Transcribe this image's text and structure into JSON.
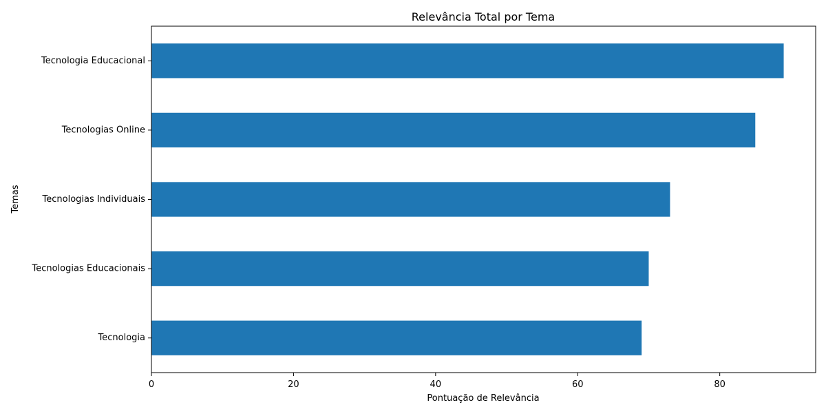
{
  "chart_data": {
    "type": "bar",
    "orientation": "horizontal",
    "title": "Relevância Total por Tema",
    "xlabel": "Pontuação de Relevância",
    "ylabel": "Temas",
    "categories": [
      "Tecnologia Educacional",
      "Tecnologias Online",
      "Tecnologias Individuais",
      "Tecnologias Educacionais",
      "Tecnologia"
    ],
    "values": [
      89,
      85,
      73,
      70,
      69
    ],
    "xlim": [
      0,
      93.5
    ],
    "xticks": [
      0,
      20,
      40,
      60,
      80
    ],
    "grid": false,
    "bar_color": "#1f77b4"
  }
}
